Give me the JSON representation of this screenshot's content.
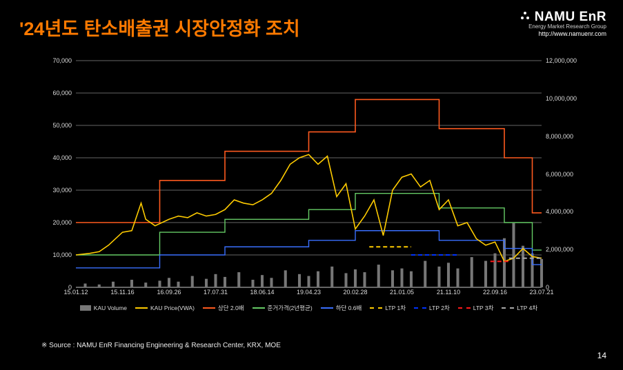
{
  "title": "'24년도 탄소배출권 시장안정화 조치",
  "logo": {
    "name": "NAMU EnR",
    "sub": "Energy Market Research Group",
    "url": "http://www.namuenr.com"
  },
  "source": "※ Source : NAMU EnR Financing Engineering & Research Center, KRX, MOE",
  "page": "14",
  "chart": {
    "background": "#000000",
    "grid_color": "#666666",
    "axis_color": "#cccccc",
    "tick_fontsize": 9,
    "y_left": {
      "min": 0,
      "max": 70000,
      "ticks": [
        0,
        10000,
        20000,
        30000,
        40000,
        50000,
        60000,
        70000
      ]
    },
    "y_right": {
      "min": 0,
      "max": 12000000,
      "ticks": [
        0,
        2000000,
        4000000,
        6000000,
        8000000,
        10000000,
        12000000
      ]
    },
    "x": {
      "labels": [
        "15.01.12",
        "15.11.16",
        "16.09.26",
        "17.07.31",
        "18.06.14",
        "19.04.23",
        "20.02.28",
        "21.01.05",
        "21.11.10",
        "22.09.16",
        "23.07.21"
      ],
      "positions": [
        0,
        10,
        20,
        30,
        40,
        50,
        60,
        70,
        80,
        90,
        100
      ]
    },
    "series": {
      "volume": {
        "label": "KAU Volume",
        "color": "#777777",
        "type": "bar",
        "axis": "right",
        "data": [
          [
            2,
            200000
          ],
          [
            5,
            150000
          ],
          [
            8,
            300000
          ],
          [
            12,
            400000
          ],
          [
            15,
            250000
          ],
          [
            18,
            350000
          ],
          [
            20,
            500000
          ],
          [
            22,
            300000
          ],
          [
            25,
            600000
          ],
          [
            28,
            450000
          ],
          [
            30,
            700000
          ],
          [
            32,
            550000
          ],
          [
            35,
            800000
          ],
          [
            38,
            400000
          ],
          [
            40,
            650000
          ],
          [
            42,
            500000
          ],
          [
            45,
            900000
          ],
          [
            48,
            700000
          ],
          [
            50,
            600000
          ],
          [
            52,
            850000
          ],
          [
            55,
            1100000
          ],
          [
            58,
            750000
          ],
          [
            60,
            950000
          ],
          [
            62,
            800000
          ],
          [
            65,
            1200000
          ],
          [
            68,
            900000
          ],
          [
            70,
            1000000
          ],
          [
            72,
            850000
          ],
          [
            75,
            1400000
          ],
          [
            78,
            1100000
          ],
          [
            80,
            1300000
          ],
          [
            82,
            1000000
          ],
          [
            85,
            1600000
          ],
          [
            88,
            1400000
          ],
          [
            90,
            1800000
          ],
          [
            92,
            2600000
          ],
          [
            94,
            3400000
          ],
          [
            96,
            2200000
          ],
          [
            98,
            1800000
          ],
          [
            100,
            1500000
          ]
        ]
      },
      "price": {
        "label": "KAU Price(VWA)",
        "color": "#ffcc00",
        "type": "line",
        "axis": "left",
        "width": 1.6,
        "data": [
          [
            0,
            10000
          ],
          [
            3,
            10500
          ],
          [
            5,
            11000
          ],
          [
            7,
            13000
          ],
          [
            10,
            17000
          ],
          [
            12,
            17500
          ],
          [
            14,
            26000
          ],
          [
            15,
            21000
          ],
          [
            17,
            19000
          ],
          [
            20,
            21000
          ],
          [
            22,
            22000
          ],
          [
            24,
            21500
          ],
          [
            26,
            23000
          ],
          [
            28,
            22000
          ],
          [
            30,
            22500
          ],
          [
            32,
            24000
          ],
          [
            34,
            27000
          ],
          [
            36,
            26000
          ],
          [
            38,
            25500
          ],
          [
            40,
            27000
          ],
          [
            42,
            29000
          ],
          [
            44,
            33000
          ],
          [
            46,
            38000
          ],
          [
            48,
            40000
          ],
          [
            50,
            41000
          ],
          [
            52,
            38000
          ],
          [
            54,
            40500
          ],
          [
            56,
            28000
          ],
          [
            58,
            32000
          ],
          [
            60,
            18000
          ],
          [
            62,
            22000
          ],
          [
            64,
            27000
          ],
          [
            66,
            16000
          ],
          [
            68,
            30000
          ],
          [
            70,
            34000
          ],
          [
            72,
            35000
          ],
          [
            74,
            31000
          ],
          [
            76,
            33000
          ],
          [
            78,
            24000
          ],
          [
            80,
            27000
          ],
          [
            82,
            19000
          ],
          [
            84,
            20000
          ],
          [
            86,
            15000
          ],
          [
            88,
            13000
          ],
          [
            90,
            14000
          ],
          [
            92,
            8000
          ],
          [
            94,
            9000
          ],
          [
            96,
            12000
          ],
          [
            98,
            9500
          ],
          [
            100,
            9000
          ]
        ]
      },
      "upper": {
        "label": "상단 2.0배",
        "color": "#ff5a1f",
        "type": "step",
        "axis": "left",
        "width": 1.6,
        "data": [
          [
            0,
            20000
          ],
          [
            18,
            20000
          ],
          [
            18,
            33000
          ],
          [
            32,
            33000
          ],
          [
            32,
            42000
          ],
          [
            50,
            42000
          ],
          [
            50,
            48000
          ],
          [
            60,
            48000
          ],
          [
            60,
            58000
          ],
          [
            78,
            58000
          ],
          [
            78,
            49000
          ],
          [
            92,
            49000
          ],
          [
            92,
            40000
          ],
          [
            98,
            40000
          ],
          [
            98,
            23000
          ],
          [
            100,
            23000
          ]
        ]
      },
      "ref": {
        "label": "준거가격(2년평균)",
        "color": "#66cc66",
        "type": "step",
        "axis": "left",
        "width": 1.4,
        "data": [
          [
            0,
            10000
          ],
          [
            18,
            10000
          ],
          [
            18,
            17000
          ],
          [
            32,
            17000
          ],
          [
            32,
            21000
          ],
          [
            50,
            21000
          ],
          [
            50,
            24000
          ],
          [
            60,
            24000
          ],
          [
            60,
            29000
          ],
          [
            78,
            29000
          ],
          [
            78,
            24500
          ],
          [
            92,
            24500
          ],
          [
            92,
            20000
          ],
          [
            98,
            20000
          ],
          [
            98,
            11500
          ],
          [
            100,
            11500
          ]
        ]
      },
      "lower": {
        "label": "하단 0.6배",
        "color": "#3a6fff",
        "type": "step",
        "axis": "left",
        "width": 1.4,
        "data": [
          [
            0,
            6000
          ],
          [
            18,
            6000
          ],
          [
            18,
            10000
          ],
          [
            32,
            10000
          ],
          [
            32,
            12500
          ],
          [
            50,
            12500
          ],
          [
            50,
            14500
          ],
          [
            60,
            14500
          ],
          [
            60,
            17500
          ],
          [
            78,
            17500
          ],
          [
            78,
            14500
          ],
          [
            92,
            14500
          ],
          [
            92,
            12000
          ],
          [
            98,
            12000
          ],
          [
            98,
            7000
          ],
          [
            100,
            7000
          ]
        ]
      },
      "ltp1": {
        "label": "LTP 1차",
        "color": "#ffcc00",
        "type": "dash",
        "axis": "left",
        "data": [
          [
            63,
            12500
          ],
          [
            72,
            12500
          ]
        ]
      },
      "ltp2": {
        "label": "LTP 2차",
        "color": "#0033ff",
        "type": "dash",
        "axis": "left",
        "data": [
          [
            72,
            10000
          ],
          [
            82,
            10000
          ]
        ]
      },
      "ltp3": {
        "label": "LTP 3차",
        "color": "#ff1a1a",
        "type": "dash",
        "axis": "left",
        "data": [
          [
            89,
            8000
          ],
          [
            93,
            8000
          ]
        ]
      },
      "ltp4": {
        "label": "LTP 4차",
        "color": "#aaaaaa",
        "type": "dash",
        "axis": "left",
        "data": [
          [
            93,
            9000
          ],
          [
            100,
            9000
          ]
        ]
      }
    },
    "legend_order": [
      "volume",
      "price",
      "upper",
      "ref",
      "lower",
      "ltp1",
      "ltp2",
      "ltp3",
      "ltp4"
    ]
  }
}
